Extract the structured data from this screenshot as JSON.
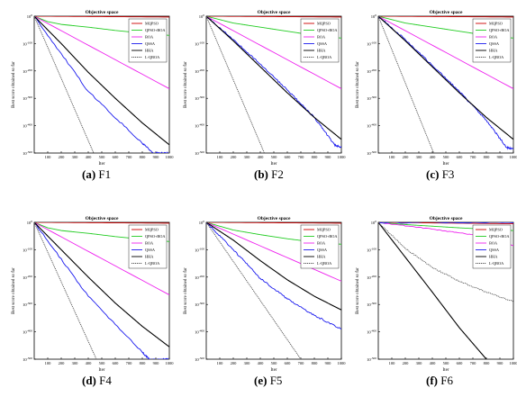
{
  "figure": {
    "panels": [
      {
        "caption_letter": "(a)",
        "caption_name": "F1"
      },
      {
        "caption_letter": "(b)",
        "caption_name": "F2"
      },
      {
        "caption_letter": "(c)",
        "caption_name": "F3"
      },
      {
        "caption_letter": "(d)",
        "caption_name": "F4"
      },
      {
        "caption_letter": "(e)",
        "caption_name": "F5"
      },
      {
        "caption_letter": "(f)",
        "caption_name": "F6"
      }
    ]
  },
  "colors": {
    "MQPSO": "#cc0000",
    "QPSO+BOA": "#22cc22",
    "BOA": "#ee22ee",
    "QSSA": "#1a1aee",
    "HHA": "#000000",
    "L-QBOA": "#555555"
  },
  "chart_data": [
    {
      "type": "line",
      "title": "Objective space",
      "xlabel": "Iter",
      "ylabel": "Best score obtained so far",
      "xlim": [
        0,
        1000
      ],
      "yscale": "log",
      "ylim_exponent": [
        -500,
        0
      ],
      "xticks": [
        100,
        200,
        300,
        400,
        500,
        600,
        700,
        800,
        900,
        1000
      ],
      "yticks": [
        "10^0",
        "10^-100",
        "10^-200",
        "10^-300",
        "10^-400",
        "10^-500"
      ],
      "legend": "top-right",
      "series": [
        {
          "name": "MQPSO",
          "x": [
            0,
            1000
          ],
          "y_exponent": [
            0,
            -3
          ]
        },
        {
          "name": "QPSO+BOA",
          "x": [
            0,
            100,
            200,
            400,
            600,
            800,
            1000
          ],
          "y_exponent": [
            0,
            -20,
            -30,
            -40,
            -52,
            -62,
            -70
          ]
        },
        {
          "name": "BOA",
          "x": [
            0,
            1000
          ],
          "y_exponent": [
            0,
            -265
          ]
        },
        {
          "name": "QSSA",
          "x": [
            0,
            400,
            800,
            880,
            1000
          ],
          "y_exponent": [
            0,
            -275,
            -465,
            -500,
            -500
          ]
        },
        {
          "name": "HHA",
          "x": [
            0,
            200,
            400,
            600,
            800,
            1000
          ],
          "y_exponent": [
            0,
            -100,
            -205,
            -300,
            -390,
            -470
          ]
        },
        {
          "name": "L-QBOA",
          "x": [
            0,
            440
          ],
          "y_exponent": [
            0,
            -500
          ]
        }
      ]
    },
    {
      "type": "line",
      "title": "Objective space",
      "xlabel": "Iter",
      "ylabel": "Best score obtained so far",
      "xlim": [
        0,
        1000
      ],
      "yscale": "log",
      "ylim_exponent": [
        -500,
        0
      ],
      "xticks": [
        100,
        200,
        300,
        400,
        500,
        600,
        700,
        800,
        900,
        1000
      ],
      "yticks": [
        "10^0",
        "10^-100",
        "10^-200",
        "10^-300",
        "10^-400",
        "10^-500"
      ],
      "legend": "top-right",
      "series": [
        {
          "name": "MQPSO",
          "x": [
            0,
            1000
          ],
          "y_exponent": [
            0,
            -3
          ]
        },
        {
          "name": "QPSO+BOA",
          "x": [
            0,
            200,
            400,
            600,
            800,
            1000
          ],
          "y_exponent": [
            0,
            -25,
            -40,
            -55,
            -70,
            -80
          ]
        },
        {
          "name": "BOA",
          "x": [
            0,
            1000
          ],
          "y_exponent": [
            0,
            -265
          ]
        },
        {
          "name": "QSSA",
          "x": [
            0,
            200,
            400,
            600,
            800,
            950,
            1000
          ],
          "y_exponent": [
            0,
            -85,
            -175,
            -270,
            -370,
            -470,
            -480
          ]
        },
        {
          "name": "HHA",
          "x": [
            0,
            200,
            400,
            600,
            800,
            1000
          ],
          "y_exponent": [
            0,
            -90,
            -185,
            -280,
            -370,
            -450
          ]
        },
        {
          "name": "L-QBOA",
          "x": [
            0,
            430
          ],
          "y_exponent": [
            0,
            -500
          ]
        }
      ]
    },
    {
      "type": "line",
      "title": "Objective space",
      "xlabel": "Iter",
      "ylabel": "Best score obtained so far",
      "xlim": [
        0,
        1000
      ],
      "yscale": "log",
      "ylim_exponent": [
        -500,
        0
      ],
      "xticks": [
        100,
        200,
        300,
        400,
        500,
        600,
        700,
        800,
        900,
        1000
      ],
      "yticks": [
        "10^0",
        "10^-100",
        "10^-200",
        "10^-300",
        "10^-400",
        "10^-500"
      ],
      "legend": "top-right",
      "series": [
        {
          "name": "MQPSO",
          "x": [
            0,
            1000
          ],
          "y_exponent": [
            0,
            -3
          ]
        },
        {
          "name": "QPSO+BOA",
          "x": [
            0,
            200,
            400,
            600,
            800,
            1000
          ],
          "y_exponent": [
            0,
            -25,
            -40,
            -55,
            -70,
            -80
          ]
        },
        {
          "name": "BOA",
          "x": [
            0,
            1000
          ],
          "y_exponent": [
            0,
            -265
          ]
        },
        {
          "name": "QSSA",
          "x": [
            0,
            200,
            400,
            600,
            800,
            950,
            1000
          ],
          "y_exponent": [
            0,
            -85,
            -180,
            -275,
            -380,
            -480,
            -485
          ]
        },
        {
          "name": "HHA",
          "x": [
            0,
            200,
            400,
            600,
            800,
            1000
          ],
          "y_exponent": [
            0,
            -90,
            -185,
            -280,
            -370,
            -450
          ]
        },
        {
          "name": "L-QBOA",
          "x": [
            0,
            410
          ],
          "y_exponent": [
            0,
            -500
          ]
        }
      ]
    },
    {
      "type": "line",
      "title": "Objective space",
      "xlabel": "Iter",
      "ylabel": "Best score obtained so far",
      "xlim": [
        0,
        1000
      ],
      "yscale": "log",
      "ylim_exponent": [
        -500,
        0
      ],
      "xticks": [
        100,
        200,
        300,
        400,
        500,
        600,
        700,
        800,
        900,
        1000
      ],
      "yticks": [
        "10^0",
        "10^-100",
        "10^-200",
        "10^-300",
        "10^-400",
        "10^-500"
      ],
      "legend": "top-right",
      "series": [
        {
          "name": "MQPSO",
          "x": [
            0,
            1000
          ],
          "y_exponent": [
            0,
            -3
          ]
        },
        {
          "name": "QPSO+BOA",
          "x": [
            0,
            100,
            200,
            400,
            600,
            800,
            1000
          ],
          "y_exponent": [
            0,
            -20,
            -30,
            -40,
            -52,
            -62,
            -70
          ]
        },
        {
          "name": "BOA",
          "x": [
            0,
            1000
          ],
          "y_exponent": [
            0,
            -265
          ]
        },
        {
          "name": "QSSA",
          "x": [
            0,
            400,
            800,
            850,
            1000
          ],
          "y_exponent": [
            0,
            -270,
            -475,
            -500,
            -500
          ]
        },
        {
          "name": "HHA",
          "x": [
            0,
            200,
            400,
            600,
            800,
            1000
          ],
          "y_exponent": [
            0,
            -100,
            -200,
            -295,
            -380,
            -455
          ]
        },
        {
          "name": "L-QBOA",
          "x": [
            0,
            460
          ],
          "y_exponent": [
            0,
            -500
          ]
        }
      ]
    },
    {
      "type": "line",
      "title": "Objective space",
      "xlabel": "Iter",
      "ylabel": "Best score obtained so far",
      "xlim": [
        0,
        1000
      ],
      "yscale": "log",
      "ylim_exponent": [
        -500,
        0
      ],
      "xticks": [
        100,
        200,
        300,
        400,
        500,
        600,
        700,
        800,
        900,
        1000
      ],
      "yticks": [
        "10^0",
        "10^-100",
        "10^-200",
        "10^-300",
        "10^-400",
        "10^-500"
      ],
      "legend": "top-right",
      "series": [
        {
          "name": "MQPSO",
          "x": [
            0,
            1000
          ],
          "y_exponent": [
            0,
            -3
          ]
        },
        {
          "name": "QPSO+BOA",
          "x": [
            0,
            200,
            400,
            600,
            800,
            1000
          ],
          "y_exponent": [
            0,
            -28,
            -45,
            -60,
            -72,
            -80
          ]
        },
        {
          "name": "BOA",
          "x": [
            0,
            1000
          ],
          "y_exponent": [
            0,
            -215
          ]
        },
        {
          "name": "QSSA",
          "x": [
            0,
            200,
            400,
            600,
            800,
            1000
          ],
          "y_exponent": [
            0,
            -100,
            -205,
            -280,
            -340,
            -390
          ]
        },
        {
          "name": "HHA",
          "x": [
            0,
            200,
            400,
            600,
            800,
            1000
          ],
          "y_exponent": [
            0,
            -65,
            -140,
            -210,
            -270,
            -320
          ]
        },
        {
          "name": "L-QBOA",
          "x": [
            0,
            700
          ],
          "y_exponent": [
            0,
            -500
          ]
        }
      ]
    },
    {
      "type": "line",
      "title": "Objective space",
      "xlabel": "Iter",
      "ylabel": "Best score obtained so far",
      "xlim": [
        0,
        1000
      ],
      "yscale": "log",
      "ylim_exponent": [
        -500,
        0
      ],
      "xticks": [
        100,
        200,
        300,
        400,
        500,
        600,
        700,
        800,
        900,
        1000
      ],
      "yticks": [
        "10^0",
        "10^-100",
        "10^-200",
        "10^-300",
        "10^-400",
        "10^-500"
      ],
      "legend": "top-right",
      "series": [
        {
          "name": "MQPSO",
          "x": [
            0,
            1000
          ],
          "y_exponent": [
            0,
            -5
          ]
        },
        {
          "name": "QPSO+BOA",
          "x": [
            0,
            200,
            400,
            600,
            800,
            1000
          ],
          "y_exponent": [
            0,
            -8,
            -14,
            -20,
            -25,
            -30
          ]
        },
        {
          "name": "BOA",
          "x": [
            0,
            400,
            700,
            900,
            1000
          ],
          "y_exponent": [
            0,
            -25,
            -45,
            -75,
            -85
          ]
        },
        {
          "name": "QSSA",
          "x": [
            0,
            1000
          ],
          "y_exponent": [
            0,
            -2
          ]
        },
        {
          "name": "HHA",
          "x": [
            0,
            400,
            600,
            800
          ],
          "y_exponent": [
            0,
            -255,
            -385,
            -500
          ]
        },
        {
          "name": "L-QBOA",
          "x": [
            0,
            200,
            400,
            600,
            800,
            1000
          ],
          "y_exponent": [
            0,
            -95,
            -165,
            -215,
            -255,
            -290
          ]
        }
      ]
    }
  ]
}
